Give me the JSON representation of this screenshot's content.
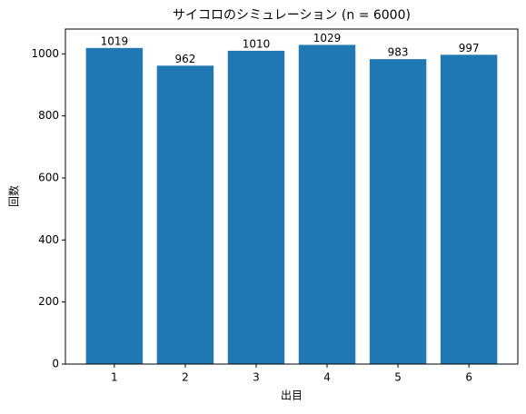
{
  "chart_data": {
    "type": "bar",
    "title": "サイコロのシミュレーション (n = 6000)",
    "x_label": "出目",
    "y_label": "回数",
    "categories": [
      "1",
      "2",
      "3",
      "4",
      "5",
      "6"
    ],
    "values": [
      1019,
      962,
      1010,
      1029,
      983,
      997
    ],
    "color": "#1f77b4",
    "ylim": [
      0,
      1080
    ],
    "yticks": [
      0,
      200,
      400,
      600,
      800,
      1000
    ],
    "grid": false
  }
}
